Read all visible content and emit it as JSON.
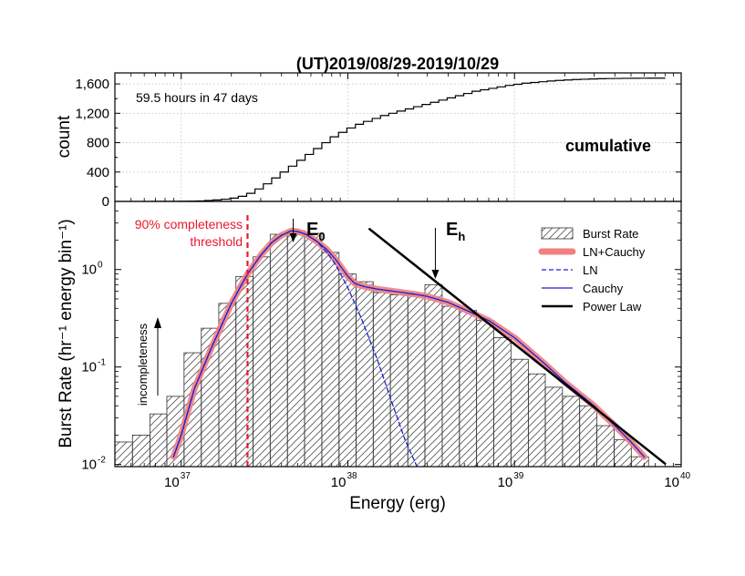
{
  "chart_data": [
    {
      "type": "line",
      "title": "(UT)2019/08/29-2019/10/29",
      "ylabel": "count",
      "xscale": "log",
      "xlim": [
        4e+36,
        1e+40
      ],
      "ylim": [
        0,
        1750
      ],
      "yticks": [
        "0",
        "400",
        "800",
        "1,200",
        "1,600"
      ],
      "ytick_values": [
        0,
        400,
        800,
        1200,
        1600
      ],
      "grid": true,
      "annotation": "59.5 hours in 47 days",
      "label": "cumulative",
      "series": [
        {
          "step": true,
          "x": [
            6.5e+36,
            8.1e+36,
            9.6e+36,
            1.09e+37,
            1.23e+37,
            1.38e+37,
            1.55e+37,
            1.74e+37,
            1.96e+37,
            2.2e+37,
            2.47e+37,
            2.77e+37,
            3.11e+37,
            3.49e+37,
            3.92e+37,
            4.4e+37,
            4.94e+37,
            5.54e+37,
            6.22e+37,
            6.98e+37,
            7.83e+37,
            8.79e+37,
            9.86e+37,
            1.11e+38,
            1.24e+38,
            1.4e+38,
            1.57e+38,
            1.76e+38,
            1.97e+38,
            2.21e+38,
            2.48e+38,
            2.79e+38,
            3.13e+38,
            3.51e+38,
            3.94e+38,
            4.42e+38,
            4.96e+38,
            5.56e+38,
            6.24e+38,
            7.01e+38,
            7.86e+38,
            8.82e+38,
            9.9e+38,
            1.11e+39,
            1.25e+39,
            1.4e+39,
            1.57e+39,
            1.76e+39,
            1.98e+39,
            2.22e+39,
            2.49e+39,
            2.8e+39,
            3.14e+39,
            3.52e+39,
            3.95e+39,
            4.44e+39,
            4.98e+39,
            5.59e+39,
            6.27e+39,
            8e+39
          ],
          "y": [
            0,
            1,
            2,
            4,
            7,
            12,
            20,
            30,
            45,
            70,
            110,
            170,
            240,
            320,
            400,
            480,
            560,
            640,
            720,
            800,
            880,
            940,
            1000,
            1050,
            1090,
            1130,
            1170,
            1200,
            1230,
            1260,
            1290,
            1320,
            1350,
            1380,
            1410,
            1440,
            1470,
            1500,
            1520,
            1540,
            1560,
            1580,
            1595,
            1610,
            1620,
            1630,
            1640,
            1648,
            1654,
            1660,
            1664,
            1668,
            1671,
            1673,
            1675,
            1676,
            1677,
            1678,
            1679,
            1680
          ]
        }
      ]
    },
    {
      "type": "bar",
      "xlabel": "Energy (erg)",
      "ylabel": "Burst Rate (hr⁻¹ energy bin⁻¹)",
      "xscale": "log",
      "yscale": "log",
      "xlim": [
        4e+36,
        1e+40
      ],
      "ylim": [
        0.0095,
        5
      ],
      "xticks": [
        "10",
        "10",
        "10",
        "10"
      ],
      "xtick_exps": [
        "37",
        "38",
        "39",
        "40"
      ],
      "xtick_values": [
        1e+37,
        1e+38,
        1e+39,
        1e+40
      ],
      "yticks": [
        "10",
        "10",
        "10"
      ],
      "ytick_exps": [
        "-2",
        "-1",
        "0"
      ],
      "ytick_values": [
        0.01,
        0.1,
        1
      ],
      "legend_position": "top-right",
      "bins": {
        "edges": [
          4e+36,
          5.1e+36,
          6.5e+36,
          8.2e+36,
          1.04e+37,
          1.32e+37,
          1.68e+37,
          2.13e+37,
          2.7e+37,
          3.42e+37,
          4.34e+37,
          5.5e+37,
          6.98e+37,
          8.85e+37,
          1.12e+38,
          1.42e+38,
          1.8e+38,
          2.29e+38,
          2.9e+38,
          3.68e+38,
          4.67e+38,
          5.92e+38,
          7.5e+38,
          9.52e+38,
          1.21e+39,
          1.53e+39,
          1.94e+39,
          2.46e+39,
          3.12e+39,
          3.96e+39,
          5.02e+39,
          6.37e+39
        ],
        "values": [
          0.017,
          0.02,
          0.033,
          0.05,
          0.14,
          0.25,
          0.45,
          0.85,
          1.35,
          2.3,
          2.5,
          2.35,
          1.5,
          0.9,
          0.75,
          0.58,
          0.55,
          0.55,
          0.7,
          0.42,
          0.38,
          0.3,
          0.2,
          0.12,
          0.085,
          0.062,
          0.05,
          0.04,
          0.025,
          0.018,
          0.012
        ]
      },
      "series": [
        {
          "name": "Burst Rate",
          "style": "hatched-bars"
        },
        {
          "name": "LN+Cauchy",
          "color": "#f08080",
          "x": [
            9e+36,
            1e+37,
            1.2e+37,
            1.5e+37,
            2e+37,
            2.5e+37,
            3e+37,
            3.5e+37,
            4e+37,
            4.6e+37,
            5e+37,
            5.6e+37,
            6.5e+37,
            7.5e+37,
            8.5e+37,
            1e+38,
            1.1e+38,
            1.25e+38,
            1.5e+38,
            2e+38,
            2.5e+38,
            3e+38,
            4e+38,
            5e+38,
            7e+38,
            1e+39,
            1.5e+39,
            2e+39,
            3e+39,
            4e+39,
            5e+39,
            6e+39
          ],
          "y": [
            0.012,
            0.02,
            0.06,
            0.15,
            0.45,
            0.9,
            1.4,
            1.9,
            2.25,
            2.5,
            2.45,
            2.3,
            1.95,
            1.6,
            1.25,
            0.85,
            0.72,
            0.67,
            0.63,
            0.59,
            0.56,
            0.53,
            0.46,
            0.39,
            0.3,
            0.2,
            0.11,
            0.07,
            0.04,
            0.025,
            0.017,
            0.012
          ]
        },
        {
          "name": "LN",
          "color": "#1f1fd6",
          "dash": true,
          "x": [
            9e+36,
            1e+37,
            1.2e+37,
            1.5e+37,
            2e+37,
            2.5e+37,
            3e+37,
            3.5e+37,
            4e+37,
            4.6e+37,
            5e+37,
            5.6e+37,
            6.5e+37,
            7.5e+37,
            8.5e+37,
            1e+38,
            1.2e+38,
            1.5e+38,
            1.8e+38,
            2.2e+38,
            2.6e+38
          ],
          "y": [
            0.012,
            0.02,
            0.06,
            0.15,
            0.45,
            0.9,
            1.4,
            1.9,
            2.25,
            2.5,
            2.45,
            2.3,
            1.95,
            1.5,
            1.1,
            0.65,
            0.32,
            0.12,
            0.048,
            0.018,
            0.0095
          ]
        },
        {
          "name": "Cauchy",
          "color": "#1f1fd6",
          "x": [
            9e+36,
            1e+37,
            1.2e+37,
            1.5e+37,
            2e+37,
            2.5e+37,
            3e+37,
            3.5e+37,
            4e+37,
            4.6e+37,
            5e+37,
            5.6e+37,
            6.5e+37,
            7.5e+37,
            8.5e+37,
            1e+38,
            1.1e+38,
            1.25e+38,
            1.5e+38,
            2e+38,
            2.5e+38,
            3e+38,
            4e+38,
            5e+38,
            7e+38,
            1e+39,
            1.5e+39,
            2e+39,
            3e+39,
            4e+39,
            5e+39,
            6e+39
          ],
          "y": [
            0.012,
            0.02,
            0.06,
            0.15,
            0.45,
            0.9,
            1.4,
            1.9,
            2.25,
            2.5,
            2.45,
            2.3,
            1.95,
            1.6,
            1.25,
            0.85,
            0.72,
            0.67,
            0.63,
            0.59,
            0.56,
            0.53,
            0.46,
            0.39,
            0.3,
            0.2,
            0.11,
            0.07,
            0.04,
            0.025,
            0.017,
            0.012
          ]
        },
        {
          "name": "Power Law",
          "color": "#000000",
          "x": [
            1.35e+38,
            8e+39
          ],
          "y": [
            2.6,
            0.0102
          ]
        }
      ],
      "annotations": {
        "threshold_lines": [
          "90% completeness",
          "threshold"
        ],
        "threshold_x": 2.5e+37,
        "threshold_color": "#e8192c",
        "e0_base": "E",
        "e0_sub": "0",
        "e0_x": 4.7e+37,
        "eh_base": "E",
        "eh_sub": "h",
        "eh_x": 3.35e+38,
        "incompleteness": "incompleteness"
      }
    }
  ]
}
